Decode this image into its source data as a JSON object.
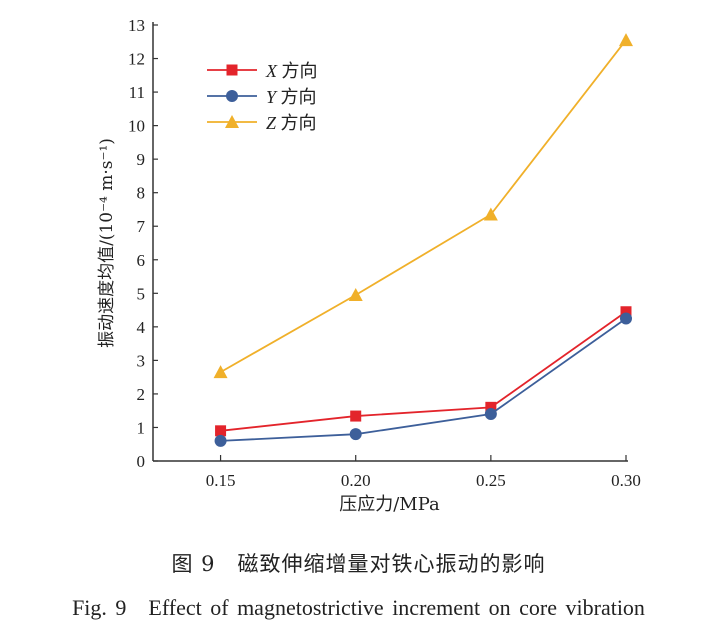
{
  "chart_data": {
    "type": "line",
    "xlabel": "压应力/MPa",
    "ylabel": "振动速度均值/(10⁻⁴ m·s⁻¹)",
    "x": [
      0.15,
      0.2,
      0.25,
      0.3
    ],
    "x_ticks": [
      "0.15",
      "0.20",
      "0.25",
      "0.30"
    ],
    "xlim": [
      0.125,
      0.3
    ],
    "ylim": [
      0,
      13
    ],
    "y_ticks": [
      0,
      1,
      2,
      3,
      4,
      5,
      6,
      7,
      8,
      9,
      10,
      11,
      12,
      13
    ],
    "grid": false,
    "legend_position": "top-left",
    "series": [
      {
        "name": "X 方向",
        "axis": "X",
        "suffix": "方向",
        "marker": "square",
        "color": "#e3242b",
        "values": [
          0.9,
          1.34,
          1.6,
          4.45
        ]
      },
      {
        "name": "Y 方向",
        "axis": "Y",
        "suffix": "方向",
        "marker": "circle",
        "color": "#3d5f9a",
        "values": [
          0.6,
          0.8,
          1.4,
          4.25
        ]
      },
      {
        "name": "Z 方向",
        "axis": "Z",
        "suffix": "方向",
        "marker": "triangle",
        "color": "#f0b02a",
        "values": [
          2.65,
          4.95,
          7.35,
          12.55
        ]
      }
    ]
  },
  "caption": {
    "chinese": "图 9　磁致伸缩增量对铁心振动的影响",
    "english": "Fig. 9　Effect of magnetostrictive increment on core vibration"
  }
}
